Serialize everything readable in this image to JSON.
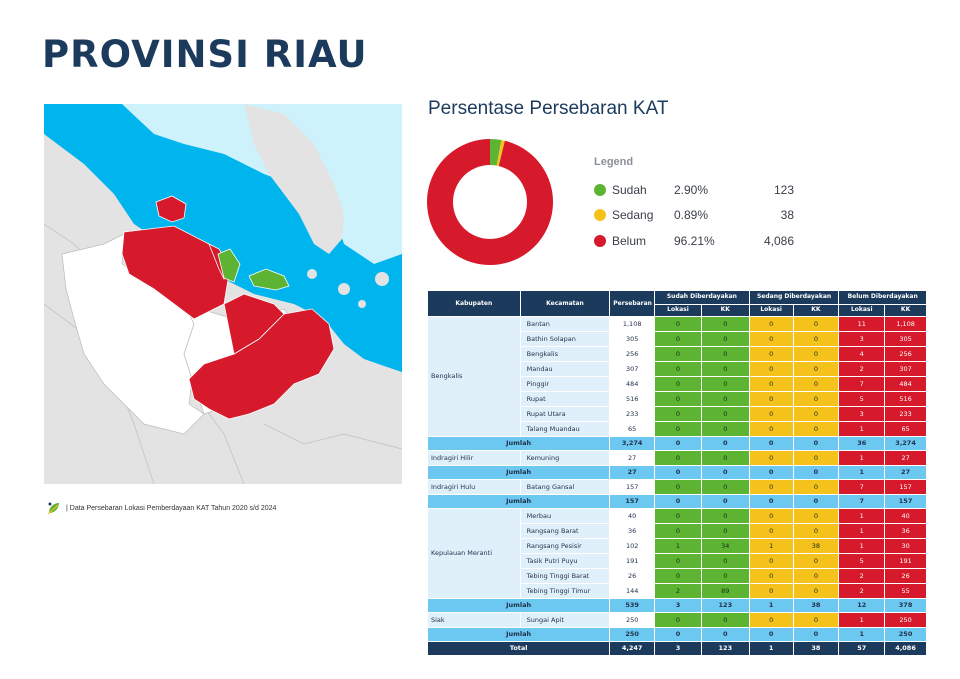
{
  "page_title": "PROVINSI RIAU",
  "source_note": "| Data Persebaran Lokasi Pemberdayaan KAT Tahun 2020 s/d 2024",
  "chart_title": "Persentase Persebaran KAT",
  "legend": {
    "title": "Legend",
    "items": [
      {
        "name": "Sudah",
        "pct": "2.90%",
        "value": "123",
        "color": "#5db332"
      },
      {
        "name": "Sedang",
        "pct": "0.89%",
        "value": "38",
        "color": "#f5c21b"
      },
      {
        "name": "Belum",
        "pct": "96.21%",
        "value": "4,086",
        "color": "#d71a2b"
      }
    ]
  },
  "chart_data": {
    "type": "pie",
    "donut": true,
    "categories": [
      "Sudah",
      "Sedang",
      "Belum"
    ],
    "values": [
      123,
      38,
      4086
    ],
    "colors": [
      "#5db332",
      "#f5c21b",
      "#d71a2b"
    ]
  },
  "table": {
    "headers": {
      "kabupaten": "Kabupaten",
      "kecamatan": "Kecamatan",
      "persebaran": "Persebaran",
      "sudah": "Sudah Diberdayakan",
      "sedang": "Sedang Diberdayakan",
      "belum": "Belum Diberdayakan",
      "lokasi": "Lokasi",
      "kk": "KK"
    },
    "groups": [
      {
        "kabupaten": "Bengkalis",
        "rows": [
          [
            "Bantan",
            "1,108",
            "0",
            "0",
            "0",
            "0",
            "11",
            "1,108"
          ],
          [
            "Bathin Solapan",
            "305",
            "0",
            "0",
            "0",
            "0",
            "3",
            "305"
          ],
          [
            "Bengkalis",
            "256",
            "0",
            "0",
            "0",
            "0",
            "4",
            "256"
          ],
          [
            "Mandau",
            "307",
            "0",
            "0",
            "0",
            "0",
            "2",
            "307"
          ],
          [
            "Pinggir",
            "484",
            "0",
            "0",
            "0",
            "0",
            "7",
            "484"
          ],
          [
            "Rupat",
            "516",
            "0",
            "0",
            "0",
            "0",
            "5",
            "516"
          ],
          [
            "Rupat Utara",
            "233",
            "0",
            "0",
            "0",
            "0",
            "3",
            "233"
          ],
          [
            "Talang Muandau",
            "65",
            "0",
            "0",
            "0",
            "0",
            "1",
            "65"
          ]
        ],
        "sum": [
          "Jumlah",
          "3,274",
          "0",
          "0",
          "0",
          "0",
          "36",
          "3,274"
        ]
      },
      {
        "kabupaten": "Indragiri Hilir",
        "rows": [
          [
            "Kemuning",
            "27",
            "0",
            "0",
            "0",
            "0",
            "1",
            "27"
          ]
        ],
        "sum": [
          "Jumlah",
          "27",
          "0",
          "0",
          "0",
          "0",
          "1",
          "27"
        ]
      },
      {
        "kabupaten": "Indragiri Hulu",
        "rows": [
          [
            "Batang Gansal",
            "157",
            "0",
            "0",
            "0",
            "0",
            "7",
            "157"
          ]
        ],
        "sum": [
          "Jumlah",
          "157",
          "0",
          "0",
          "0",
          "0",
          "7",
          "157"
        ]
      },
      {
        "kabupaten": "Kepulauan Meranti",
        "rows": [
          [
            "Merbau",
            "40",
            "0",
            "0",
            "0",
            "0",
            "1",
            "40"
          ],
          [
            "Rangsang Barat",
            "36",
            "0",
            "0",
            "0",
            "0",
            "1",
            "36"
          ],
          [
            "Rangsang Pesisir",
            "102",
            "1",
            "34",
            "1",
            "38",
            "1",
            "30"
          ],
          [
            "Tasik Putri Puyu",
            "191",
            "0",
            "0",
            "0",
            "0",
            "5",
            "191"
          ],
          [
            "Tebing Tinggi Barat",
            "26",
            "0",
            "0",
            "0",
            "0",
            "2",
            "26"
          ],
          [
            "Tebing Tinggi Timur",
            "144",
            "2",
            "89",
            "0",
            "0",
            "2",
            "55"
          ]
        ],
        "sum": [
          "Jumlah",
          "539",
          "3",
          "123",
          "1",
          "38",
          "12",
          "378"
        ]
      },
      {
        "kabupaten": "Siak",
        "rows": [
          [
            "Sungai Apit",
            "250",
            "0",
            "0",
            "0",
            "0",
            "1",
            "250"
          ]
        ],
        "sum": [
          "Jumlah",
          "250",
          "0",
          "0",
          "0",
          "0",
          "1",
          "250"
        ]
      }
    ],
    "total": [
      "Total",
      "4,247",
      "3",
      "123",
      "1",
      "38",
      "57",
      "4,086"
    ]
  }
}
